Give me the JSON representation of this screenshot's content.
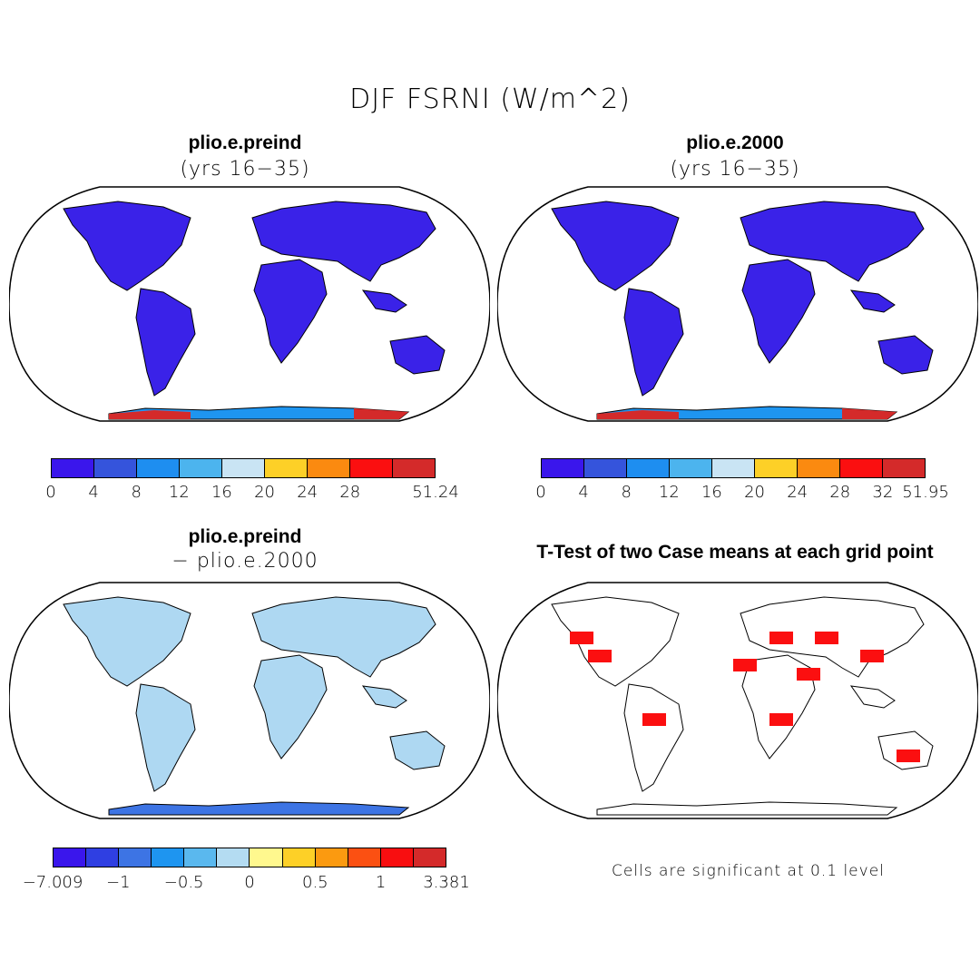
{
  "title": "DJF FSRNI (W/m^2)",
  "panels": [
    {
      "id": "preind",
      "title": "plio.e.preind",
      "subtitle": "(yrs 16−35)",
      "colorbar": {
        "colors": [
          "#3a16ec",
          "#3554dc",
          "#1e8ef0",
          "#4cb4ee",
          "#c9e4f4",
          "#fdd027",
          "#fb8a10",
          "#fb0f10",
          "#d42a2a"
        ],
        "labels": [
          "0",
          "4",
          "8",
          "12",
          "16",
          "20",
          "24",
          "28",
          "",
          "51.24"
        ]
      }
    },
    {
      "id": "y2000",
      "title": "plio.e.2000",
      "subtitle": "(yrs 16−35)",
      "colorbar": {
        "colors": [
          "#3a16ec",
          "#3554dc",
          "#1e8ef0",
          "#4cb4ee",
          "#c9e4f4",
          "#fdd027",
          "#fb8a10",
          "#fb0f10",
          "#d42a2a"
        ],
        "labels": [
          "0",
          "4",
          "8",
          "12",
          "16",
          "20",
          "24",
          "28",
          "32",
          "51.95"
        ]
      }
    },
    {
      "id": "diff",
      "title": "plio.e.preind",
      "subtitle": "− plio.e.2000",
      "colorbar": {
        "colors": [
          "#3a16ec",
          "#2f3fe2",
          "#3d74e4",
          "#1e95f0",
          "#5ab8ee",
          "#b4dcf2",
          "#fff88e",
          "#fdd027",
          "#fb9a10",
          "#fb5012",
          "#f80e10",
          "#d42a2a"
        ],
        "labels": [
          "−7.009",
          "−1",
          "−0.5",
          "0",
          "0.5",
          "1",
          "3.381"
        ]
      }
    },
    {
      "id": "ttest",
      "title": "T-Test of two Case means at each grid point",
      "note": "Cells are significant at 0.1 level"
    }
  ]
}
